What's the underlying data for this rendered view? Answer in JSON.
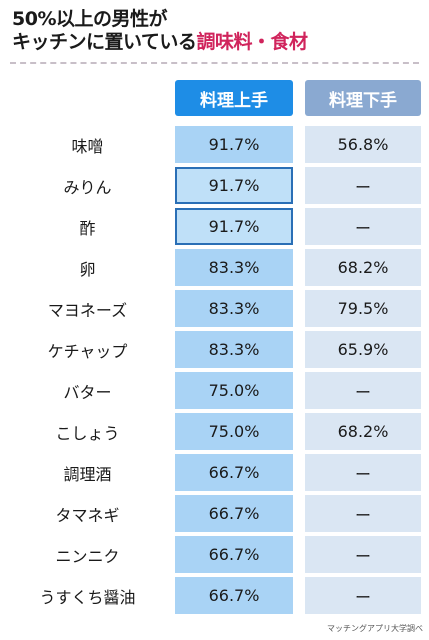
{
  "header": {
    "title_line1": "50%以上の男性が",
    "title_line2_prefix": "キッチンに置いている",
    "title_line2_accent": "調味料・食材"
  },
  "chart_data": {
    "type": "table",
    "columns": [
      "料理上手",
      "料理下手"
    ],
    "rows": [
      {
        "label": "味噌",
        "good": "91.7%",
        "bad": "56.8%",
        "boxed": false
      },
      {
        "label": "みりん",
        "good": "91.7%",
        "bad": "ー",
        "boxed": true
      },
      {
        "label": "酢",
        "good": "91.7%",
        "bad": "ー",
        "boxed": true
      },
      {
        "label": "卵",
        "good": "83.3%",
        "bad": "68.2%",
        "boxed": false
      },
      {
        "label": "マヨネーズ",
        "good": "83.3%",
        "bad": "79.5%",
        "boxed": false
      },
      {
        "label": "ケチャップ",
        "good": "83.3%",
        "bad": "65.9%",
        "boxed": false
      },
      {
        "label": "バター",
        "good": "75.0%",
        "bad": "ー",
        "boxed": false
      },
      {
        "label": "こしょう",
        "good": "75.0%",
        "bad": "68.2%",
        "boxed": false
      },
      {
        "label": "調理酒",
        "good": "66.7%",
        "bad": "ー",
        "boxed": false
      },
      {
        "label": "タマネギ",
        "good": "66.7%",
        "bad": "ー",
        "boxed": false
      },
      {
        "label": "ニンニク",
        "good": "66.7%",
        "bad": "ー",
        "boxed": false
      },
      {
        "label": "うすくち醤油",
        "good": "66.7%",
        "bad": "ー",
        "boxed": false
      }
    ]
  },
  "source": "マッチングアプリ大学調べ"
}
